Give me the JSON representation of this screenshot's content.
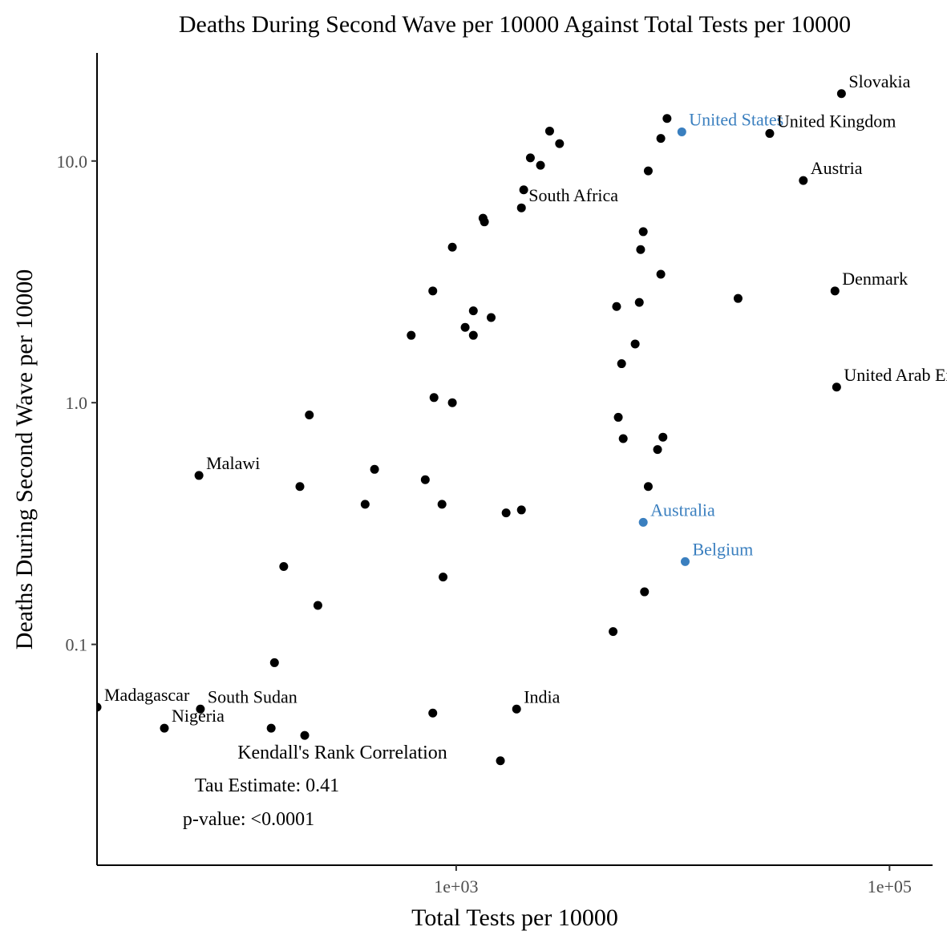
{
  "chart_data": {
    "type": "scatter",
    "title": "Deaths During Second Wave per 10000 Against Total Tests per 10000",
    "xlabel": "Total Tests per 10000",
    "ylabel": "Deaths During Second Wave per 10000",
    "x_scale": "log10",
    "y_scale": "log10",
    "xlim": [
      22,
      158000
    ],
    "ylim": [
      0.0122,
      28
    ],
    "x_ticks": [
      {
        "value": 1000,
        "label": "1e+03"
      },
      {
        "value": 100000,
        "label": "1e+05"
      }
    ],
    "y_ticks": [
      {
        "value": 0.1,
        "label": "0.1"
      },
      {
        "value": 1,
        "label": "1.0"
      },
      {
        "value": 10,
        "label": "10.0"
      }
    ],
    "grid": false,
    "legend": "none",
    "colors": {
      "default": "#000000",
      "highlight": "#3a7fbf"
    },
    "points": [
      {
        "label": "Slovakia",
        "x": 60000,
        "y": 19.0
      },
      {
        "label": "United States",
        "x": 11000,
        "y": 13.2,
        "highlight": true
      },
      {
        "label": "United Kingdom",
        "x": 28000,
        "y": 13.0
      },
      {
        "label": "Austria",
        "x": 40000,
        "y": 8.3
      },
      {
        "label": "South Africa",
        "x": 2000,
        "y": 6.4
      },
      {
        "label": "Denmark",
        "x": 56000,
        "y": 2.9
      },
      {
        "label": "United Arab Emir",
        "x": 57000,
        "y": 1.16
      },
      {
        "label": "Malawi",
        "x": 65,
        "y": 0.5
      },
      {
        "label": "Australia",
        "x": 7300,
        "y": 0.32,
        "highlight": true
      },
      {
        "label": "Belgium",
        "x": 11400,
        "y": 0.22,
        "highlight": true
      },
      {
        "label": "India",
        "x": 1900,
        "y": 0.054
      },
      {
        "label": "Madagascar",
        "x": 22,
        "y": 0.055
      },
      {
        "label": "South Sudan",
        "x": 66,
        "y": 0.054
      },
      {
        "label": "Nigeria",
        "x": 45,
        "y": 0.045
      },
      {
        "label": "",
        "x": 9400,
        "y": 15.0
      },
      {
        "label": "",
        "x": 8800,
        "y": 12.4
      },
      {
        "label": "",
        "x": 2700,
        "y": 13.3
      },
      {
        "label": "",
        "x": 3000,
        "y": 11.8
      },
      {
        "label": "",
        "x": 2200,
        "y": 10.3
      },
      {
        "label": "",
        "x": 2450,
        "y": 9.6
      },
      {
        "label": "",
        "x": 7700,
        "y": 9.1
      },
      {
        "label": "",
        "x": 2050,
        "y": 7.6
      },
      {
        "label": "",
        "x": 1330,
        "y": 5.8
      },
      {
        "label": "",
        "x": 1350,
        "y": 5.6
      },
      {
        "label": "",
        "x": 7300,
        "y": 5.1
      },
      {
        "label": "",
        "x": 7100,
        "y": 4.3
      },
      {
        "label": "",
        "x": 960,
        "y": 4.4
      },
      {
        "label": "",
        "x": 8800,
        "y": 3.4
      },
      {
        "label": "",
        "x": 20000,
        "y": 2.7
      },
      {
        "label": "",
        "x": 780,
        "y": 2.9
      },
      {
        "label": "",
        "x": 5500,
        "y": 2.5
      },
      {
        "label": "",
        "x": 7000,
        "y": 2.6
      },
      {
        "label": "",
        "x": 1200,
        "y": 2.4
      },
      {
        "label": "",
        "x": 1450,
        "y": 2.25
      },
      {
        "label": "",
        "x": 1100,
        "y": 2.05
      },
      {
        "label": "",
        "x": 1200,
        "y": 1.9
      },
      {
        "label": "",
        "x": 620,
        "y": 1.9
      },
      {
        "label": "",
        "x": 6700,
        "y": 1.75
      },
      {
        "label": "",
        "x": 5800,
        "y": 1.45
      },
      {
        "label": "",
        "x": 790,
        "y": 1.05
      },
      {
        "label": "",
        "x": 960,
        "y": 1.0
      },
      {
        "label": "",
        "x": 5600,
        "y": 0.87
      },
      {
        "label": "",
        "x": 5900,
        "y": 0.71
      },
      {
        "label": "",
        "x": 9000,
        "y": 0.72
      },
      {
        "label": "",
        "x": 8500,
        "y": 0.64
      },
      {
        "label": "",
        "x": 210,
        "y": 0.89
      },
      {
        "label": "",
        "x": 420,
        "y": 0.53
      },
      {
        "label": "",
        "x": 190,
        "y": 0.45
      },
      {
        "label": "",
        "x": 380,
        "y": 0.38
      },
      {
        "label": "",
        "x": 720,
        "y": 0.48
      },
      {
        "label": "",
        "x": 860,
        "y": 0.38
      },
      {
        "label": "",
        "x": 1700,
        "y": 0.35
      },
      {
        "label": "",
        "x": 2000,
        "y": 0.36
      },
      {
        "label": "",
        "x": 7700,
        "y": 0.45
      },
      {
        "label": "",
        "x": 160,
        "y": 0.21
      },
      {
        "label": "",
        "x": 870,
        "y": 0.19
      },
      {
        "label": "",
        "x": 230,
        "y": 0.145
      },
      {
        "label": "",
        "x": 7400,
        "y": 0.165
      },
      {
        "label": "",
        "x": 5300,
        "y": 0.113
      },
      {
        "label": "",
        "x": 145,
        "y": 0.084
      },
      {
        "label": "",
        "x": 140,
        "y": 0.045
      },
      {
        "label": "",
        "x": 200,
        "y": 0.042
      },
      {
        "label": "",
        "x": 780,
        "y": 0.052
      },
      {
        "label": "",
        "x": 1600,
        "y": 0.033
      }
    ],
    "annotations": [
      "Kendall's Rank Correlation",
      "Tau Estimate: 0.41",
      "p-value: <0.0001"
    ]
  }
}
